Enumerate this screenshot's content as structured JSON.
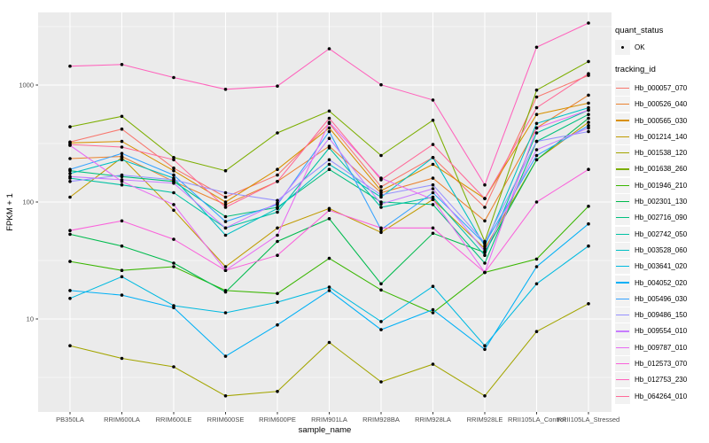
{
  "axes": {
    "x_title": "sample_name",
    "y_title": "FPKM + 1",
    "y_tick_labels": [
      "10",
      "100",
      "1000"
    ],
    "y_tick_values": [
      10,
      100,
      1000
    ],
    "y_minor_values": [
      3.162,
      31.62,
      316.2,
      3162
    ]
  },
  "legend": {
    "quant_status_title": "quant_status",
    "quant_status_items": [
      {
        "label": "OK",
        "marker": "point"
      }
    ],
    "tracking_title": "tracking_id"
  },
  "colors": {
    "panel_bg": "#EBEBEB",
    "gridline": "#FFFFFF",
    "tick_mark": "#333333",
    "tick_label": "#4D4D4D",
    "point": "#000000",
    "legend_key_bg": "#F2F2F2"
  },
  "chart_data": {
    "type": "line",
    "title": "",
    "xlabel": "sample_name",
    "ylabel": "FPKM + 1",
    "y_scale": "log10",
    "ylim": [
      1.5,
      4200
    ],
    "grid": true,
    "legend_position": "right",
    "point_marker": "black dot on every value (quant_status OK)",
    "categories": [
      "PB350LA",
      "RRIM600LA",
      "RRIM600LE",
      "RRIM600SE",
      "RRIM600PE",
      "RRIM901LA",
      "RRIM928BA",
      "RRIM928LA",
      "RRIM928LE",
      "RRII105LA_Control",
      "RRII105LA_Stressed"
    ],
    "series": [
      {
        "name": "Hb_000057_070",
        "color": "#F8766D",
        "values": [
          326,
          420,
          195,
          110,
          170,
          470,
          135,
          240,
          90,
          790,
          1210
        ]
      },
      {
        "name": "Hb_000526_040",
        "color": "#EA8331",
        "values": [
          235,
          245,
          150,
          95,
          150,
          300,
          120,
          160,
          69,
          430,
          820
        ]
      },
      {
        "name": "Hb_000565_030",
        "color": "#D89000",
        "values": [
          320,
          330,
          185,
          100,
          190,
          430,
          125,
          210,
          107,
          560,
          700
        ]
      },
      {
        "name": "Hb_001214_140",
        "color": "#C09B00",
        "values": [
          110,
          240,
          85,
          28,
          60,
          88,
          55,
          105,
          40,
          230,
          480
        ]
      },
      {
        "name": "Hb_001538_120",
        "color": "#A3A500",
        "values": [
          5.9,
          4.6,
          3.9,
          2.2,
          2.4,
          6.3,
          2.9,
          4.1,
          2.2,
          7.8,
          13.5
        ]
      },
      {
        "name": "Hb_001638_260",
        "color": "#7CAE00",
        "values": [
          440,
          540,
          240,
          185,
          390,
          600,
          250,
          500,
          46,
          905,
          1590
        ]
      },
      {
        "name": "Hb_001946_210",
        "color": "#39B600",
        "values": [
          31,
          26,
          28,
          17.5,
          16.5,
          33,
          17.7,
          11.3,
          25,
          32.5,
          92
        ]
      },
      {
        "name": "Hb_002301_130",
        "color": "#00BB4E",
        "values": [
          53,
          42,
          30,
          17,
          46,
          72,
          20,
          54,
          37,
          230,
          520
        ]
      },
      {
        "name": "Hb_002716_090",
        "color": "#00BF7D",
        "values": [
          185,
          165,
          150,
          75,
          90,
          190,
          100,
          95,
          30,
          330,
          560
        ]
      },
      {
        "name": "Hb_002742_050",
        "color": "#00C1A3",
        "values": [
          160,
          140,
          120,
          60,
          82,
          290,
          90,
          110,
          35,
          390,
          610
        ]
      },
      {
        "name": "Hb_003528_060",
        "color": "#00BFC4",
        "values": [
          175,
          230,
          160,
          52,
          88,
          210,
          110,
          240,
          42,
          470,
          640
        ]
      },
      {
        "name": "Hb_003641_020",
        "color": "#00BAE0",
        "values": [
          15,
          23,
          13,
          11.3,
          13.9,
          18.7,
          9.5,
          19,
          5.9,
          20,
          42
        ]
      },
      {
        "name": "Hb_004052_020",
        "color": "#00B0F6",
        "values": [
          17.5,
          16,
          12.5,
          4.8,
          8.9,
          17.5,
          8.1,
          12,
          5.5,
          28,
          65
        ]
      },
      {
        "name": "Hb_005496_030",
        "color": "#35A2FF",
        "values": [
          190,
          260,
          170,
          68,
          95,
          400,
          58,
          120,
          44,
          250,
          450
        ]
      },
      {
        "name": "Hb_009486_150",
        "color": "#9590FF",
        "values": [
          150,
          170,
          155,
          120,
          103,
          230,
          115,
          140,
          45,
          330,
          400
        ]
      },
      {
        "name": "Hb_009554_010",
        "color": "#C77CFF",
        "values": [
          165,
          155,
          145,
          60,
          98,
          350,
          96,
          130,
          38,
          280,
          430
        ]
      },
      {
        "name": "Hb_009787_010",
        "color": "#E76BF3",
        "values": [
          305,
          150,
          95,
          26,
          52,
          480,
          160,
          105,
          25,
          430,
          610
        ]
      },
      {
        "name": "Hb_012573_070",
        "color": "#FA62DB",
        "values": [
          57,
          69,
          48,
          26,
          35,
          85,
          60,
          60,
          25,
          100,
          190
        ]
      },
      {
        "name": "Hb_012753_230",
        "color": "#FF62BC",
        "values": [
          1450,
          1500,
          1160,
          920,
          980,
          2045,
          1005,
          745,
          140,
          2105,
          3390
        ]
      },
      {
        "name": "Hb_064264_010",
        "color": "#FF6A98",
        "values": [
          310,
          295,
          230,
          90,
          150,
          520,
          155,
          310,
          107,
          640,
          1250
        ]
      }
    ]
  }
}
